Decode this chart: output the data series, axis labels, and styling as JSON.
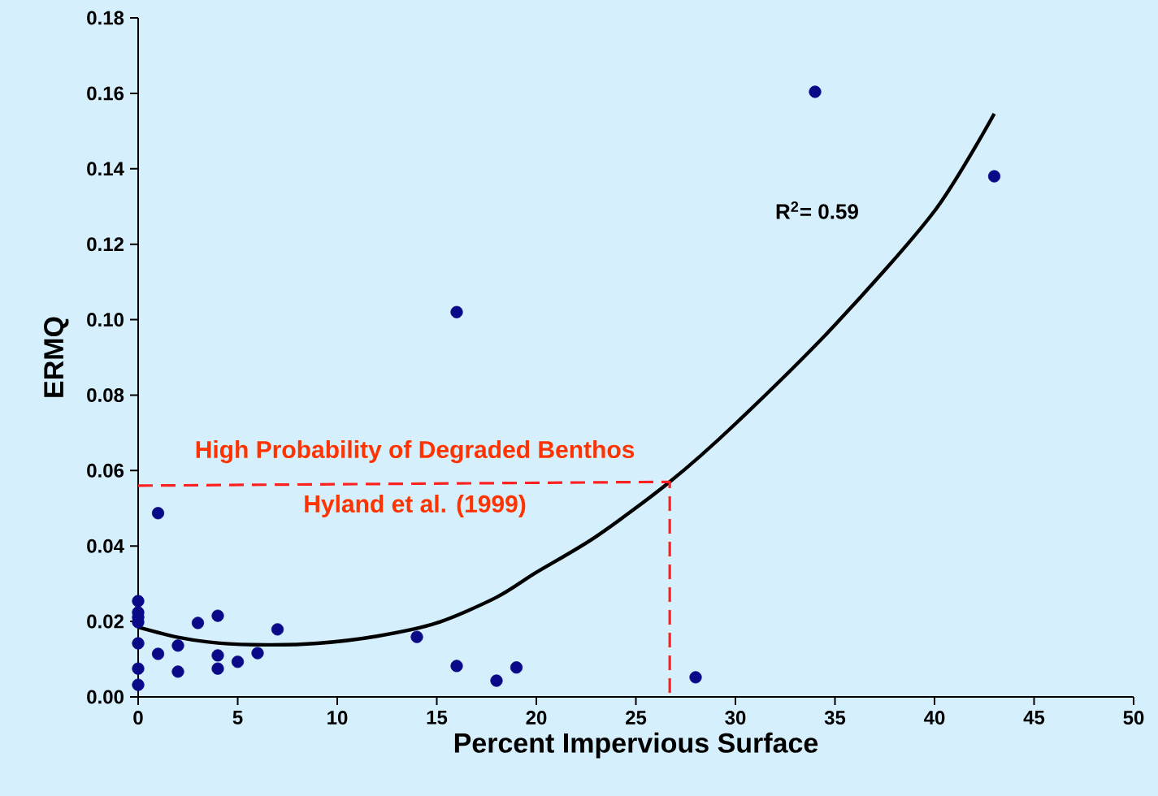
{
  "chart_data": {
    "type": "scatter",
    "xlabel": "Percent Impervious Surface",
    "ylabel": "ERMQ",
    "xlim": [
      0,
      50
    ],
    "xticks": [
      0,
      5,
      10,
      15,
      20,
      25,
      30,
      35,
      40,
      45,
      50
    ],
    "ylim": [
      0,
      0.18
    ],
    "yticks": [
      {
        "value": 0,
        "label": "0.00"
      },
      {
        "value": 0.02,
        "label": "0.02"
      },
      {
        "value": 0.04,
        "label": "0.04"
      },
      {
        "value": 0.06,
        "label": "0.06"
      },
      {
        "value": 0.08,
        "label": "0.08"
      },
      {
        "value": 0.1,
        "label": "0.10"
      },
      {
        "value": 0.12,
        "label": "0.12"
      },
      {
        "value": 0.14,
        "label": "0.14"
      },
      {
        "value": 0.16,
        "label": "0.16"
      },
      {
        "value": 0.18,
        "label": "0.18"
      }
    ],
    "grid": false,
    "annotations": [
      "High Probability of Degraded Benthos",
      "Hyland et al. (1999)",
      "R$^{2}$= 0.59"
    ],
    "series": [
      {
        "marker": "circle",
        "color": "#0a0a88",
        "x": [
          0,
          0,
          0,
          0,
          0,
          0,
          0,
          1,
          1,
          2,
          2,
          3,
          4,
          4,
          4,
          5,
          6,
          7,
          14,
          16,
          16,
          18,
          19,
          28,
          34,
          43
        ],
        "values": [
          0.0254,
          0.0224,
          0.0211,
          0.0198,
          0.0142,
          0.0075,
          0.0032,
          0.0487,
          0.0114,
          0.0136,
          0.0067,
          0.0196,
          0.0215,
          0.011,
          0.0075,
          0.0093,
          0.0116,
          0.0179,
          0.0159,
          0.102,
          0.0082,
          0.0043,
          0.0078,
          0.0052,
          0.1604,
          0.138
        ]
      },
      {
        "type": "line",
        "color": "#000000",
        "marker": "none",
        "line_style": "solid",
        "x": [
          0,
          2,
          4,
          6.5,
          9,
          12,
          15,
          18,
          20,
          23,
          26.7,
          30,
          35,
          40,
          43
        ],
        "values": [
          0.0185,
          0.0158,
          0.0143,
          0.0138,
          0.0142,
          0.0161,
          0.0196,
          0.0264,
          0.033,
          0.0425,
          0.057,
          0.0724,
          0.0986,
          0.1288,
          0.1546
        ]
      },
      {
        "type": "line",
        "color": "#ff2020",
        "marker": "none",
        "line_style": "dashed",
        "x": [
          0,
          26.7,
          26.7
        ],
        "values": [
          0.056,
          0.057,
          0
        ]
      }
    ]
  }
}
